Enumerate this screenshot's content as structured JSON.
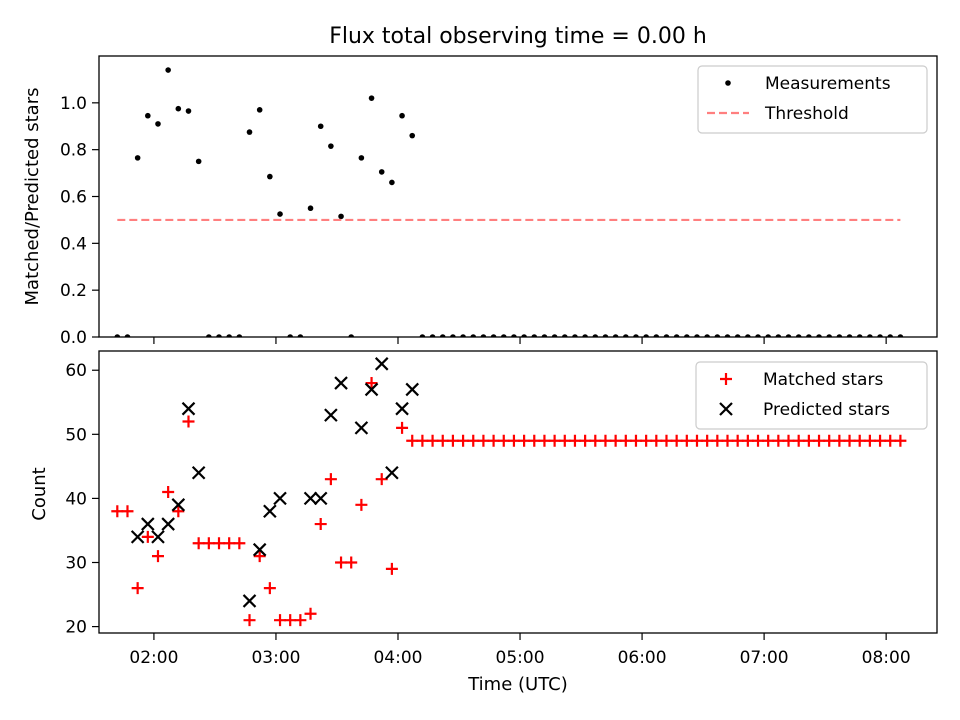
{
  "chart_data": [
    {
      "type": "scatter",
      "title": "Flux total observing time = 0.00 h",
      "ylabel": "Matched/Predicted stars",
      "xlabel": "",
      "x_axis": "time_utc",
      "xlim": [
        "01:33",
        "08:25"
      ],
      "ylim": [
        0,
        1.2
      ],
      "yticks": [
        0.0,
        0.2,
        0.4,
        0.6,
        0.8,
        1.0
      ],
      "ytick_labels": [
        "0.0",
        "0.2",
        "0.4",
        "0.6",
        "0.8",
        "1.0"
      ],
      "xticks": [
        "02:00",
        "03:00",
        "04:00",
        "05:00",
        "06:00",
        "07:00",
        "08:00"
      ],
      "show_xtick_labels": false,
      "legend": {
        "placement": "top-right",
        "entries": [
          "Measurements",
          "Threshold"
        ]
      },
      "series": [
        {
          "name": "Measurements",
          "marker": "dot",
          "color": "#000000",
          "points": [
            [
              "01:42",
              0.0
            ],
            [
              "01:47",
              0.0
            ],
            [
              "01:52",
              0.765
            ],
            [
              "01:57",
              0.945
            ],
            [
              "02:02",
              0.91
            ],
            [
              "02:07",
              1.14
            ],
            [
              "02:12",
              0.975
            ],
            [
              "02:17",
              0.965
            ],
            [
              "02:22",
              0.75
            ],
            [
              "02:27",
              0.0
            ],
            [
              "02:32",
              0.0
            ],
            [
              "02:37",
              0.0
            ],
            [
              "02:42",
              0.0
            ],
            [
              "02:47",
              0.875
            ],
            [
              "02:52",
              0.97
            ],
            [
              "02:57",
              0.685
            ],
            [
              "03:02",
              0.525
            ],
            [
              "03:07",
              0.0
            ],
            [
              "03:12",
              0.0
            ],
            [
              "03:17",
              0.55
            ],
            [
              "03:22",
              0.9
            ],
            [
              "03:27",
              0.815
            ],
            [
              "03:32",
              0.515
            ],
            [
              "03:37",
              0.0
            ],
            [
              "03:42",
              0.765
            ],
            [
              "03:47",
              1.02
            ],
            [
              "03:52",
              0.705
            ],
            [
              "03:57",
              0.66
            ],
            [
              "04:02",
              0.945
            ],
            [
              "04:07",
              0.86
            ],
            [
              "04:12",
              0.0
            ],
            [
              "04:17",
              0.0
            ],
            [
              "04:22",
              0.0
            ],
            [
              "04:27",
              0.0
            ],
            [
              "04:32",
              0.0
            ],
            [
              "04:37",
              0.0
            ],
            [
              "04:42",
              0.0
            ],
            [
              "04:47",
              0.0
            ],
            [
              "04:52",
              0.0
            ],
            [
              "04:57",
              0.0
            ],
            [
              "05:02",
              0.0
            ],
            [
              "05:07",
              0.0
            ],
            [
              "05:12",
              0.0
            ],
            [
              "05:17",
              0.0
            ],
            [
              "05:22",
              0.0
            ],
            [
              "05:27",
              0.0
            ],
            [
              "05:32",
              0.0
            ],
            [
              "05:37",
              0.0
            ],
            [
              "05:42",
              0.0
            ],
            [
              "05:47",
              0.0
            ],
            [
              "05:52",
              0.0
            ],
            [
              "05:57",
              0.0
            ],
            [
              "06:02",
              0.0
            ],
            [
              "06:07",
              0.0
            ],
            [
              "06:12",
              0.0
            ],
            [
              "06:17",
              0.0
            ],
            [
              "06:22",
              0.0
            ],
            [
              "06:27",
              0.0
            ],
            [
              "06:32",
              0.0
            ],
            [
              "06:37",
              0.0
            ],
            [
              "06:42",
              0.0
            ],
            [
              "06:47",
              0.0
            ],
            [
              "06:52",
              0.0
            ],
            [
              "06:57",
              0.0
            ],
            [
              "07:02",
              0.0
            ],
            [
              "07:07",
              0.0
            ],
            [
              "07:12",
              0.0
            ],
            [
              "07:17",
              0.0
            ],
            [
              "07:22",
              0.0
            ],
            [
              "07:27",
              0.0
            ],
            [
              "07:32",
              0.0
            ],
            [
              "07:37",
              0.0
            ],
            [
              "07:42",
              0.0
            ],
            [
              "07:47",
              0.0
            ],
            [
              "07:52",
              0.0
            ],
            [
              "07:57",
              0.0
            ],
            [
              "08:02",
              0.0
            ],
            [
              "08:07",
              0.0
            ]
          ]
        },
        {
          "name": "Threshold",
          "style": "dashed-line",
          "color": "#ff7f7f",
          "points": [
            [
              "01:42",
              0.5
            ],
            [
              "08:07",
              0.5
            ]
          ]
        }
      ]
    },
    {
      "type": "scatter",
      "title": "",
      "ylabel": "Count",
      "xlabel": "Time (UTC)",
      "x_axis": "time_utc",
      "xlim": [
        "01:33",
        "08:25"
      ],
      "ylim": [
        19,
        63
      ],
      "yticks": [
        20,
        30,
        40,
        50,
        60
      ],
      "ytick_labels": [
        "20",
        "30",
        "40",
        "50",
        "60"
      ],
      "xticks": [
        "02:00",
        "03:00",
        "04:00",
        "05:00",
        "06:00",
        "07:00",
        "08:00"
      ],
      "xtick_labels": [
        "02:00",
        "03:00",
        "04:00",
        "05:00",
        "06:00",
        "07:00",
        "08:00"
      ],
      "show_xtick_labels": true,
      "legend": {
        "placement": "top-right",
        "entries": [
          "Matched stars",
          "Predicted stars"
        ]
      },
      "series": [
        {
          "name": "Matched stars",
          "marker": "plus",
          "color": "#ff0000",
          "points": [
            [
              "01:42",
              38
            ],
            [
              "01:47",
              38
            ],
            [
              "01:52",
              26
            ],
            [
              "01:57",
              34
            ],
            [
              "02:02",
              31
            ],
            [
              "02:07",
              41
            ],
            [
              "02:12",
              38
            ],
            [
              "02:17",
              52
            ],
            [
              "02:22",
              33
            ],
            [
              "02:27",
              33
            ],
            [
              "02:32",
              33
            ],
            [
              "02:37",
              33
            ],
            [
              "02:42",
              33
            ],
            [
              "02:47",
              21
            ],
            [
              "02:52",
              31
            ],
            [
              "02:57",
              26
            ],
            [
              "03:02",
              21
            ],
            [
              "03:07",
              21
            ],
            [
              "03:12",
              21
            ],
            [
              "03:17",
              22
            ],
            [
              "03:22",
              36
            ],
            [
              "03:27",
              43
            ],
            [
              "03:32",
              30
            ],
            [
              "03:37",
              30
            ],
            [
              "03:42",
              39
            ],
            [
              "03:47",
              58
            ],
            [
              "03:52",
              43
            ],
            [
              "03:57",
              29
            ],
            [
              "04:02",
              51
            ],
            [
              "04:07",
              49
            ],
            [
              "04:12",
              49
            ],
            [
              "04:17",
              49
            ],
            [
              "04:22",
              49
            ],
            [
              "04:27",
              49
            ],
            [
              "04:32",
              49
            ],
            [
              "04:37",
              49
            ],
            [
              "04:42",
              49
            ],
            [
              "04:47",
              49
            ],
            [
              "04:52",
              49
            ],
            [
              "04:57",
              49
            ],
            [
              "05:02",
              49
            ],
            [
              "05:07",
              49
            ],
            [
              "05:12",
              49
            ],
            [
              "05:17",
              49
            ],
            [
              "05:22",
              49
            ],
            [
              "05:27",
              49
            ],
            [
              "05:32",
              49
            ],
            [
              "05:37",
              49
            ],
            [
              "05:42",
              49
            ],
            [
              "05:47",
              49
            ],
            [
              "05:52",
              49
            ],
            [
              "05:57",
              49
            ],
            [
              "06:02",
              49
            ],
            [
              "06:07",
              49
            ],
            [
              "06:12",
              49
            ],
            [
              "06:17",
              49
            ],
            [
              "06:22",
              49
            ],
            [
              "06:27",
              49
            ],
            [
              "06:32",
              49
            ],
            [
              "06:37",
              49
            ],
            [
              "06:42",
              49
            ],
            [
              "06:47",
              49
            ],
            [
              "06:52",
              49
            ],
            [
              "06:57",
              49
            ],
            [
              "07:02",
              49
            ],
            [
              "07:07",
              49
            ],
            [
              "07:12",
              49
            ],
            [
              "07:17",
              49
            ],
            [
              "07:22",
              49
            ],
            [
              "07:27",
              49
            ],
            [
              "07:32",
              49
            ],
            [
              "07:37",
              49
            ],
            [
              "07:42",
              49
            ],
            [
              "07:47",
              49
            ],
            [
              "07:52",
              49
            ],
            [
              "07:57",
              49
            ],
            [
              "08:02",
              49
            ],
            [
              "08:07",
              49
            ]
          ]
        },
        {
          "name": "Predicted stars",
          "marker": "x",
          "color": "#000000",
          "points": [
            [
              "01:52",
              34
            ],
            [
              "01:57",
              36
            ],
            [
              "02:02",
              34
            ],
            [
              "02:07",
              36
            ],
            [
              "02:12",
              39
            ],
            [
              "02:17",
              54
            ],
            [
              "02:22",
              44
            ],
            [
              "02:47",
              24
            ],
            [
              "02:52",
              32
            ],
            [
              "02:57",
              38
            ],
            [
              "03:02",
              40
            ],
            [
              "03:17",
              40
            ],
            [
              "03:22",
              40
            ],
            [
              "03:27",
              53
            ],
            [
              "03:32",
              58
            ],
            [
              "03:42",
              51
            ],
            [
              "03:47",
              57
            ],
            [
              "03:52",
              61
            ],
            [
              "03:57",
              44
            ],
            [
              "04:02",
              54
            ],
            [
              "04:07",
              57
            ]
          ]
        }
      ]
    }
  ]
}
